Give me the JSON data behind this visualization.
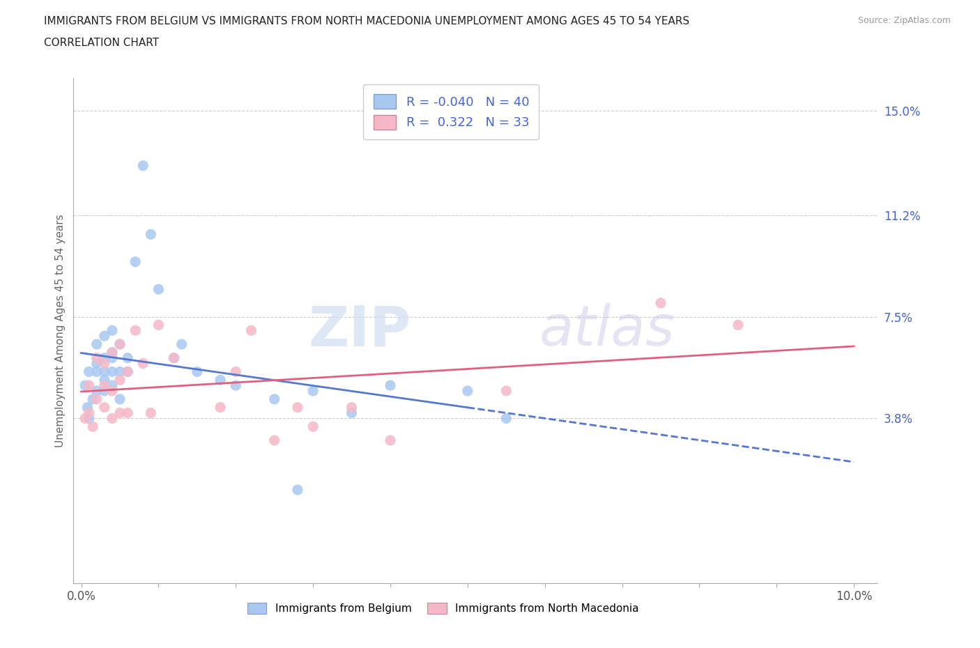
{
  "title_line1": "IMMIGRANTS FROM BELGIUM VS IMMIGRANTS FROM NORTH MACEDONIA UNEMPLOYMENT AMONG AGES 45 TO 54 YEARS",
  "title_line2": "CORRELATION CHART",
  "source_text": "Source: ZipAtlas.com",
  "ylabel": "Unemployment Among Ages 45 to 54 years",
  "xlim": [
    -0.001,
    0.103
  ],
  "ylim": [
    -0.022,
    0.162
  ],
  "ytick_right_values": [
    0.038,
    0.075,
    0.112,
    0.15
  ],
  "ytick_right_labels": [
    "3.8%",
    "7.5%",
    "11.2%",
    "15.0%"
  ],
  "hline_values": [
    0.038,
    0.075,
    0.112,
    0.15
  ],
  "legend_r_belgium": "-0.040",
  "legend_n_belgium": "40",
  "legend_r_macedonia": "0.322",
  "legend_n_macedonia": "33",
  "color_belgium": "#a8c8f0",
  "color_macedonia": "#f5b8c8",
  "color_belgium_line": "#5577cc",
  "color_macedonia_line": "#e06080",
  "color_text_blue": "#4466cc",
  "color_title": "#222222",
  "background_color": "#ffffff",
  "watermark_text": "ZIPatlas",
  "belgium_x": [
    0.0005,
    0.0008,
    0.001,
    0.001,
    0.0015,
    0.002,
    0.002,
    0.002,
    0.002,
    0.003,
    0.003,
    0.003,
    0.003,
    0.003,
    0.004,
    0.004,
    0.004,
    0.004,
    0.004,
    0.005,
    0.005,
    0.005,
    0.006,
    0.006,
    0.007,
    0.008,
    0.009,
    0.01,
    0.012,
    0.013,
    0.015,
    0.018,
    0.02,
    0.025,
    0.028,
    0.03,
    0.035,
    0.04,
    0.05,
    0.055
  ],
  "belgium_y": [
    0.05,
    0.042,
    0.038,
    0.055,
    0.045,
    0.048,
    0.055,
    0.058,
    0.065,
    0.048,
    0.052,
    0.055,
    0.06,
    0.068,
    0.05,
    0.055,
    0.06,
    0.062,
    0.07,
    0.045,
    0.055,
    0.065,
    0.055,
    0.06,
    0.095,
    0.13,
    0.105,
    0.085,
    0.06,
    0.065,
    0.055,
    0.052,
    0.05,
    0.045,
    0.012,
    0.048,
    0.04,
    0.05,
    0.048,
    0.038
  ],
  "macedonia_x": [
    0.0005,
    0.001,
    0.001,
    0.0015,
    0.002,
    0.002,
    0.003,
    0.003,
    0.003,
    0.004,
    0.004,
    0.004,
    0.005,
    0.005,
    0.005,
    0.006,
    0.006,
    0.007,
    0.008,
    0.009,
    0.01,
    0.012,
    0.018,
    0.02,
    0.022,
    0.025,
    0.028,
    0.03,
    0.035,
    0.04,
    0.055,
    0.075,
    0.085
  ],
  "macedonia_y": [
    0.038,
    0.04,
    0.05,
    0.035,
    0.045,
    0.06,
    0.042,
    0.05,
    0.058,
    0.038,
    0.048,
    0.062,
    0.04,
    0.052,
    0.065,
    0.04,
    0.055,
    0.07,
    0.058,
    0.04,
    0.072,
    0.06,
    0.042,
    0.055,
    0.07,
    0.03,
    0.042,
    0.035,
    0.042,
    0.03,
    0.048,
    0.08,
    0.072
  ]
}
